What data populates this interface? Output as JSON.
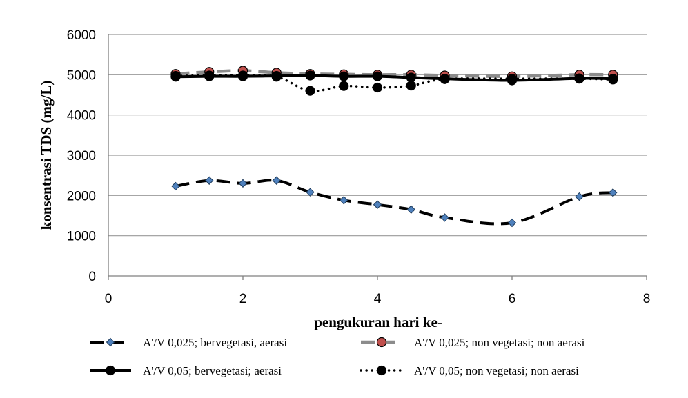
{
  "chart_data": {
    "type": "line",
    "title": "",
    "xlabel": "pengukuran hari ke-",
    "ylabel": "konsentrasi TDS (mg/L)",
    "xlim": [
      0,
      8
    ],
    "ylim": [
      0,
      6000
    ],
    "x_ticks": [
      "0",
      "2",
      "4",
      "6",
      "8"
    ],
    "y_ticks": [
      "0",
      "1000",
      "2000",
      "3000",
      "4000",
      "5000",
      "6000"
    ],
    "grid": "horizontal",
    "legend_position": "bottom",
    "series": [
      {
        "name": "A'/V 0,025; bervegetasi, aerasi",
        "x": [
          1,
          1.5,
          2,
          2.5,
          3,
          3.5,
          4,
          4.5,
          5,
          6,
          7,
          7.5
        ],
        "y": [
          2230,
          2370,
          2300,
          2370,
          2080,
          1880,
          1770,
          1650,
          1450,
          1320,
          1970,
          2070
        ],
        "color": "#000000",
        "marker_color": "#4f81bd",
        "line_style": "dash",
        "marker": "diamond"
      },
      {
        "name": "A'/V 0,025; non vegetasi; non aerasi",
        "x": [
          1,
          1.5,
          2,
          2.5,
          3,
          3.5,
          4,
          4.5,
          5,
          6,
          7,
          7.5
        ],
        "y": [
          5020,
          5070,
          5100,
          5050,
          5020,
          5010,
          5000,
          5000,
          4980,
          4960,
          5000,
          5000
        ],
        "color": "#8c8c8c",
        "marker_color": "#c0504d",
        "line_style": "dash",
        "marker": "circle"
      },
      {
        "name": "A'/V 0,05; bervegetasi; aerasi",
        "x": [
          1,
          1.5,
          2,
          2.5,
          3,
          3.5,
          4,
          4.5,
          5,
          6,
          7,
          7.5
        ],
        "y": [
          4950,
          4960,
          4960,
          4970,
          4980,
          4960,
          4960,
          4930,
          4900,
          4860,
          4910,
          4900
        ],
        "color": "#000000",
        "marker_color": "#000000",
        "line_style": "solid",
        "marker": "circle"
      },
      {
        "name": "A'/V 0,05; non vegetasi; non aerasi",
        "x": [
          1,
          1.5,
          2,
          2.5,
          3,
          3.5,
          4,
          4.5,
          5,
          6,
          7,
          7.5
        ],
        "y": [
          4970,
          4980,
          4980,
          4950,
          4600,
          4720,
          4680,
          4730,
          4890,
          4900,
          4900,
          4880
        ],
        "color": "#000000",
        "marker_color": "#000000",
        "line_style": "dot",
        "marker": "circle"
      }
    ]
  }
}
